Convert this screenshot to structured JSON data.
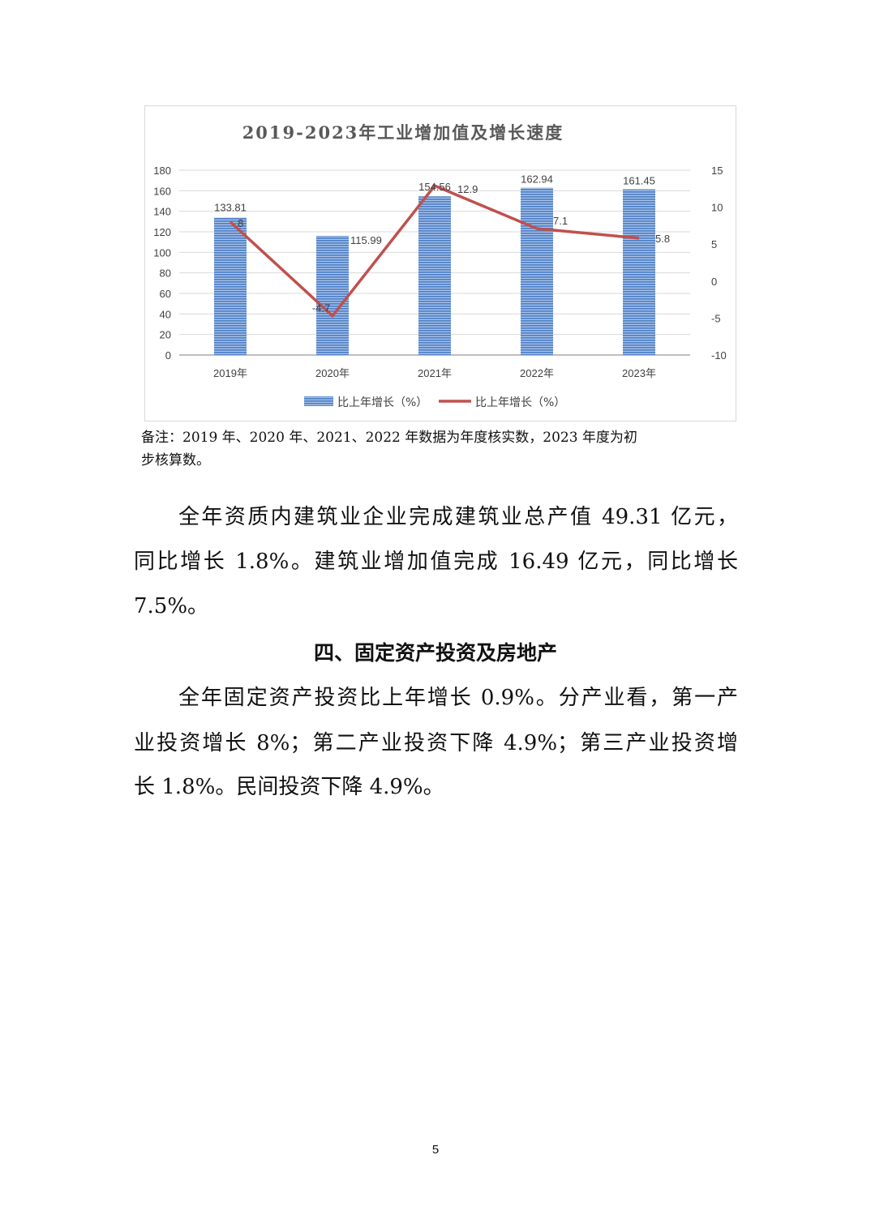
{
  "chart_data": {
    "type": "bar+line",
    "title": "2019-2023年工业增加值及增长速度",
    "categories": [
      "2019年",
      "2020年",
      "2021年",
      "2022年",
      "2023年"
    ],
    "series": [
      {
        "name": "比上年增长（%）",
        "type": "bar",
        "axis": "left",
        "values": [
          133.81,
          115.99,
          154.56,
          162.94,
          161.45
        ],
        "labels": [
          "133.81",
          "115.99",
          "154.56",
          "162.94",
          "161.45"
        ],
        "color": "#5b8fd4"
      },
      {
        "name": "比上年增长（%）",
        "type": "line",
        "axis": "right",
        "values": [
          8,
          -4.7,
          12.9,
          7.1,
          5.8
        ],
        "labels": [
          "8",
          "-4.7",
          "12.9",
          "7.1",
          "5.8"
        ],
        "color": "#c0504d"
      }
    ],
    "left_axis": {
      "ylim": [
        0,
        180
      ],
      "ticks": [
        "0",
        "20",
        "40",
        "60",
        "80",
        "100",
        "120",
        "140",
        "160",
        "180"
      ]
    },
    "right_axis": {
      "ylim": [
        -10,
        15
      ],
      "ticks": [
        "-10",
        "-5",
        "0",
        "5",
        "10",
        "15"
      ]
    },
    "grid": true,
    "legend_placement": "bottom"
  },
  "note": {
    "lines": [
      "备注：2019 年、2020 年、2021、2022 年数据为年度核实数，2023 年度为初",
      "步核算数。"
    ]
  },
  "paragraph1": {
    "lines": [
      "全年资质内建筑业企业完成建筑业总产值 49.31 亿元，",
      "同比增长 1.8%。建筑业增加值完成 16.49 亿元，同比增长",
      "7.5%。"
    ]
  },
  "heading": "四、固定资产投资及房地产",
  "paragraph2": {
    "lines": [
      "全年固定资产投资比上年增长 0.9%。分产业看，第一产",
      "业投资增长 8%；第二产业投资下降 4.9%；第三产业投资增",
      "长 1.8%。民间投资下降 4.9%。"
    ]
  },
  "page_number": "5"
}
